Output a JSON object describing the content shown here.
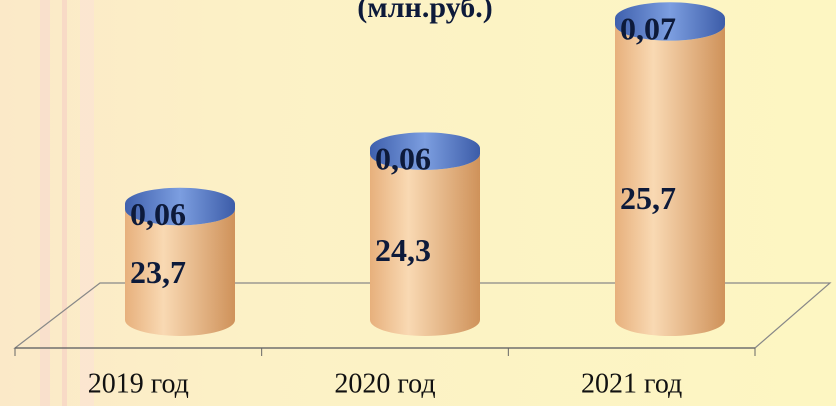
{
  "chart_data": {
    "type": "bar3d",
    "title": "(млн.руб.)",
    "categories": [
      "2019 год",
      "2020 год",
      "2021 год"
    ],
    "series": [
      {
        "color": "#e9b27c",
        "values": [
          23.7,
          24.3,
          25.7
        ],
        "value_labels": [
          "23,7",
          "24,3",
          "25,7"
        ]
      },
      {
        "color": "#4f74c4",
        "values": [
          0.06,
          0.06,
          0.07
        ],
        "value_labels": [
          "0,06",
          "0,06",
          "0,07"
        ]
      }
    ],
    "ylim": [
      22.5,
      26
    ]
  }
}
